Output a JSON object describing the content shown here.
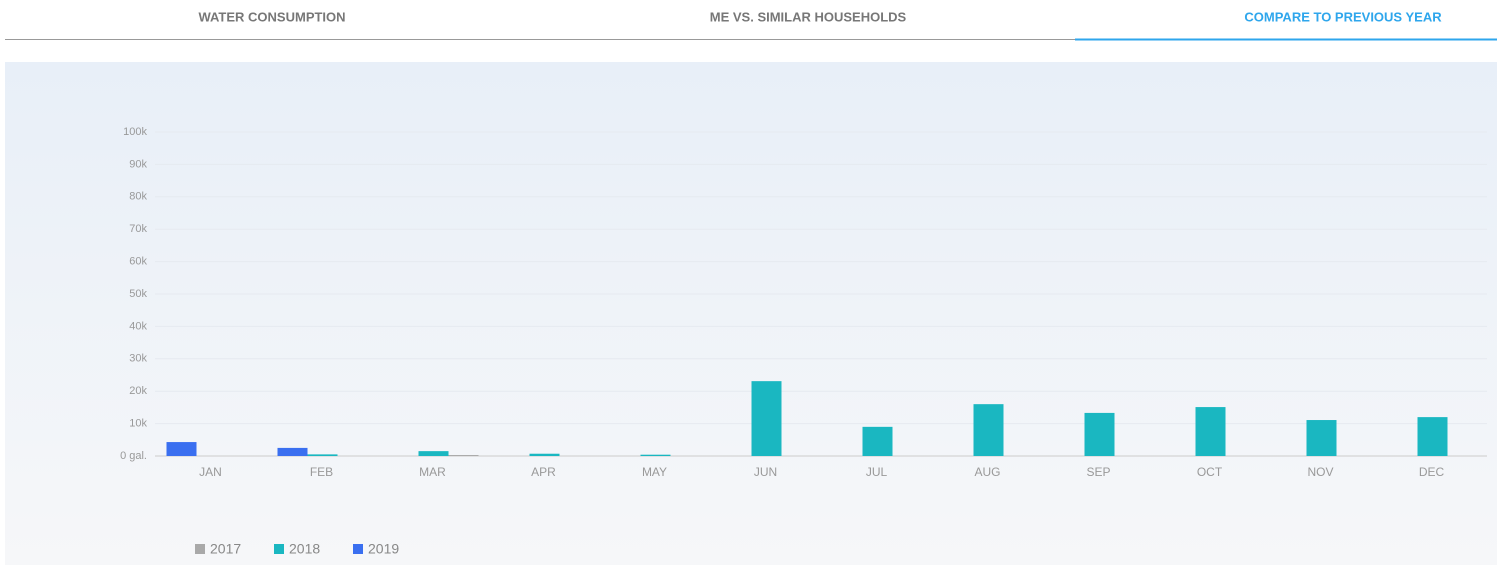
{
  "tabs": [
    {
      "label": "WATER CONSUMPTION",
      "active": false
    },
    {
      "label": "ME VS. SIMILAR HOUSEHOLDS",
      "active": false
    },
    {
      "label": "COMPARE TO PREVIOUS YEAR",
      "active": true
    }
  ],
  "chart_data": {
    "type": "bar",
    "categories": [
      "JAN",
      "FEB",
      "MAR",
      "APR",
      "MAY",
      "JUN",
      "JUL",
      "AUG",
      "SEP",
      "OCT",
      "NOV",
      "DEC"
    ],
    "series": [
      {
        "name": "2017",
        "color": "#a9a9a9",
        "values": [
          null,
          null,
          300,
          null,
          null,
          null,
          null,
          null,
          null,
          null,
          null,
          null
        ]
      },
      {
        "name": "2018",
        "color": "#1ab7c1",
        "values": [
          null,
          500,
          1500,
          700,
          400,
          23100,
          9000,
          16000,
          13300,
          15100,
          11100,
          12000
        ]
      },
      {
        "name": "2019",
        "color": "#3a6ff0",
        "values": [
          4300,
          2500,
          null,
          null,
          null,
          null,
          null,
          null,
          null,
          null,
          null,
          null
        ]
      }
    ],
    "ylim": [
      0,
      100000
    ],
    "yticks": [
      {
        "value": 0,
        "label": "0 gal."
      },
      {
        "value": 10000,
        "label": "10k"
      },
      {
        "value": 20000,
        "label": "20k"
      },
      {
        "value": 30000,
        "label": "30k"
      },
      {
        "value": 40000,
        "label": "40k"
      },
      {
        "value": 50000,
        "label": "50k"
      },
      {
        "value": 60000,
        "label": "60k"
      },
      {
        "value": 70000,
        "label": "70k"
      },
      {
        "value": 80000,
        "label": "80k"
      },
      {
        "value": 90000,
        "label": "90k"
      },
      {
        "value": 100000,
        "label": "100k"
      }
    ],
    "grid": true,
    "legend": "bottom-left"
  }
}
